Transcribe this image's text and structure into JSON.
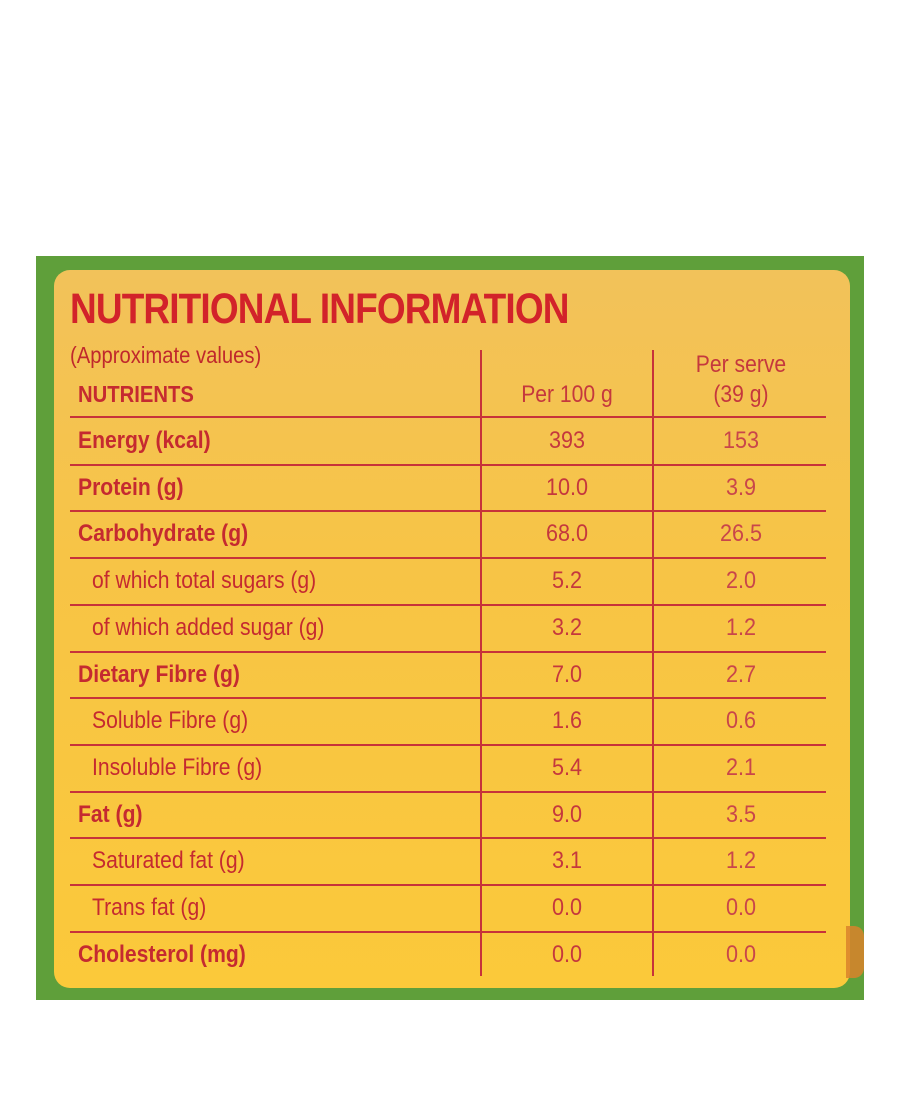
{
  "title": "NUTRITIONAL INFORMATION",
  "subtitle": "(Approximate values)",
  "headers": {
    "nutrients": "NUTRIENTS",
    "per100": "Per 100 g",
    "serve_line1": "Per serve",
    "serve_line2": "(39 g)"
  },
  "rows": [
    {
      "name": "Energy (kcal)",
      "per100": "393",
      "serve": "153",
      "style": "bold"
    },
    {
      "name": "Protein (g)",
      "per100": "10.0",
      "serve": "3.9",
      "style": "bold"
    },
    {
      "name": "Carbohydrate (g)",
      "per100": "68.0",
      "serve": "26.5",
      "style": "bold"
    },
    {
      "name": "of which total sugars (g)",
      "per100": "5.2",
      "serve": "2.0",
      "style": "indent"
    },
    {
      "name": "of which added sugar (g)",
      "per100": "3.2",
      "serve": "1.2",
      "style": "indent"
    },
    {
      "name": "Dietary Fibre (g)",
      "per100": "7.0",
      "serve": "2.7",
      "style": "bold"
    },
    {
      "name": "Soluble Fibre (g)",
      "per100": "1.6",
      "serve": "0.6",
      "style": "indent"
    },
    {
      "name": "Insoluble Fibre (g)",
      "per100": "5.4",
      "serve": "2.1",
      "style": "indent"
    },
    {
      "name": "Fat (g)",
      "per100": "9.0",
      "serve": "3.5",
      "style": "bold"
    },
    {
      "name": "Saturated fat (g)",
      "per100": "3.1",
      "serve": "1.2",
      "style": "indent"
    },
    {
      "name": "Trans fat (g)",
      "per100": "0.0",
      "serve": "0.0",
      "style": "indent"
    },
    {
      "name": "Cholesterol (mg)",
      "per100": "0.0",
      "serve": "0.0",
      "style": "bold"
    }
  ],
  "colors": {
    "border_green": "#5f9f3a",
    "panel_yellow": "#f7c446",
    "text_red": "#d2232a"
  }
}
